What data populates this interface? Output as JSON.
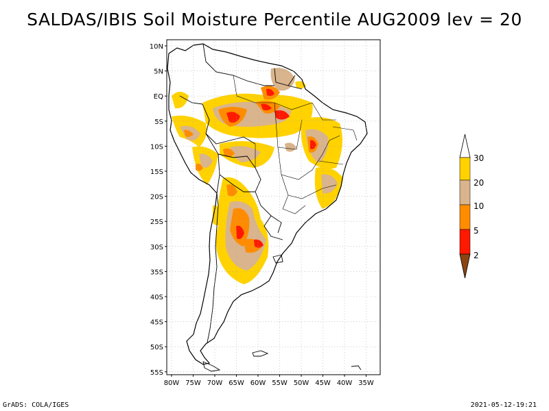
{
  "title": "SALDAS/IBIS Soil Moisture Percentile AUG2009 lev = 20",
  "footer": {
    "left": "GrADS: COLA/IGES",
    "right": "2021-05-12-19:21"
  },
  "axes": {
    "lat_labels": [
      "10N",
      "5N",
      "EQ",
      "5S",
      "10S",
      "15S",
      "20S",
      "25S",
      "30S",
      "35S",
      "40S",
      "45S",
      "50S",
      "55S"
    ],
    "lon_labels": [
      "80W",
      "75W",
      "70W",
      "65W",
      "60W",
      "55W",
      "50W",
      "45W",
      "40W",
      "35W"
    ]
  },
  "legend": {
    "labels": [
      "30",
      "20",
      "10",
      "5",
      "2"
    ],
    "colors": {
      "above_30": "#ffffff",
      "p20_30": "#ffd200",
      "p10_20": "#d9b48c",
      "p5_10": "#ff8c00",
      "p2_5": "#ff1900",
      "below_2": "#8b4513"
    }
  },
  "colors": {
    "land_outline": "#000000",
    "grid": "#aaaaaa",
    "frame": "#000000"
  }
}
